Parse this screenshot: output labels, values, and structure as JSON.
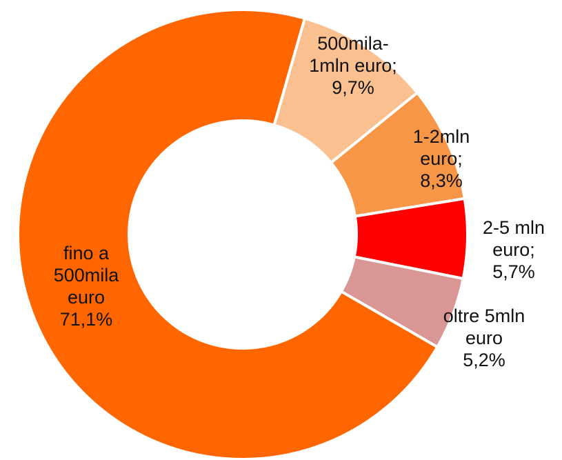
{
  "chart_data": {
    "type": "donut",
    "categories": [
      "500mila-1mln euro;",
      "1-2mln euro;",
      "2-5 mln euro;",
      "oltre 5mln euro",
      "fino a 500mila euro"
    ],
    "values": [
      9.7,
      8.3,
      5.7,
      5.2,
      71.1
    ],
    "value_labels": [
      "9,7%",
      "8,3%",
      "5,7%",
      "5,2%",
      "71,1%"
    ],
    "colors": [
      "#fac090",
      "#f79646",
      "#ff0000",
      "#d99694",
      "#ff6600"
    ]
  }
}
